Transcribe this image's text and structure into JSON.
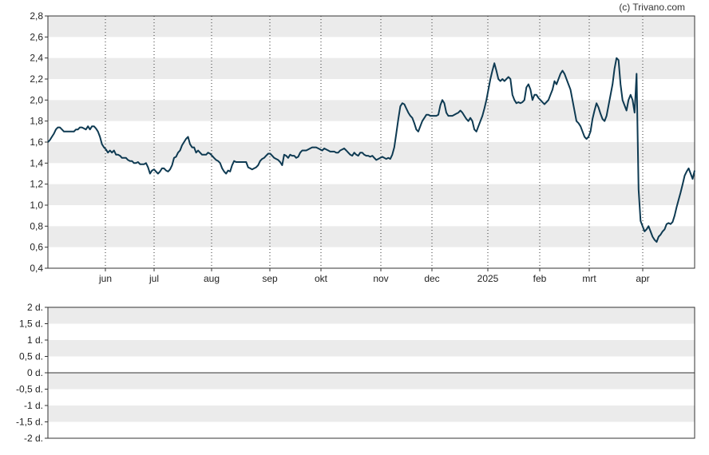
{
  "watermark": "(c) Trivano.com",
  "chart_data": [
    {
      "type": "line",
      "title": "",
      "xlabel": "",
      "ylabel": "",
      "ylim": [
        0.4,
        2.8
      ],
      "yticks": [
        "0,4",
        "0,6",
        "0,8",
        "1,0",
        "1,2",
        "1,4",
        "1,6",
        "1,8",
        "2,0",
        "2,2",
        "2,4",
        "2,6",
        "2,8"
      ],
      "xticks": [
        "jun",
        "jul",
        "aug",
        "sep",
        "okt",
        "nov",
        "dec",
        "2025",
        "feb",
        "mrt",
        "apr"
      ],
      "grid": "alternating horizontal bands, dotted vertical lines",
      "line_color": "#0e3a52",
      "series": [
        {
          "values": [
            1.6,
            1.62,
            1.65,
            1.68,
            1.72,
            1.74,
            1.74,
            1.72,
            1.7,
            1.7,
            1.7,
            1.7,
            1.7,
            1.7,
            1.72,
            1.72,
            1.74,
            1.74,
            1.73,
            1.72,
            1.75,
            1.72,
            1.75,
            1.75,
            1.73,
            1.7,
            1.65,
            1.58,
            1.55,
            1.53,
            1.5,
            1.52,
            1.5,
            1.52,
            1.48,
            1.48,
            1.47,
            1.45,
            1.45,
            1.45,
            1.43,
            1.42,
            1.42,
            1.4,
            1.4,
            1.41,
            1.39,
            1.39,
            1.39,
            1.4,
            1.36,
            1.3,
            1.33,
            1.34,
            1.32,
            1.3,
            1.32,
            1.35,
            1.35,
            1.33,
            1.32,
            1.34,
            1.38,
            1.45,
            1.46,
            1.5,
            1.52,
            1.57,
            1.6,
            1.63,
            1.65,
            1.58,
            1.55,
            1.55,
            1.5,
            1.52,
            1.5,
            1.48,
            1.48,
            1.48,
            1.5,
            1.49,
            1.47,
            1.45,
            1.43,
            1.42,
            1.4,
            1.35,
            1.32,
            1.3,
            1.33,
            1.32,
            1.38,
            1.42,
            1.41,
            1.41,
            1.41,
            1.41,
            1.41,
            1.41,
            1.36,
            1.35,
            1.34,
            1.35,
            1.36,
            1.38,
            1.42,
            1.44,
            1.45,
            1.47,
            1.49,
            1.49,
            1.47,
            1.45,
            1.44,
            1.43,
            1.41,
            1.38,
            1.48,
            1.47,
            1.45,
            1.48,
            1.47,
            1.47,
            1.45,
            1.46,
            1.5,
            1.52,
            1.52,
            1.52,
            1.53,
            1.54,
            1.55,
            1.55,
            1.55,
            1.54,
            1.53,
            1.52,
            1.54,
            1.53,
            1.52,
            1.51,
            1.51,
            1.51,
            1.5,
            1.5,
            1.52,
            1.53,
            1.54,
            1.52,
            1.5,
            1.48,
            1.47,
            1.5,
            1.48,
            1.47,
            1.5,
            1.5,
            1.48,
            1.47,
            1.47,
            1.46,
            1.47,
            1.45,
            1.43,
            1.44,
            1.45,
            1.46,
            1.45,
            1.44,
            1.45,
            1.44,
            1.48,
            1.55,
            1.68,
            1.82,
            1.94,
            1.97,
            1.96,
            1.92,
            1.88,
            1.85,
            1.83,
            1.78,
            1.72,
            1.7,
            1.75,
            1.8,
            1.83,
            1.86,
            1.86,
            1.85,
            1.85,
            1.85,
            1.85,
            1.86,
            1.95,
            2.0,
            1.97,
            1.88,
            1.85,
            1.85,
            1.85,
            1.86,
            1.87,
            1.88,
            1.9,
            1.88,
            1.85,
            1.82,
            1.8,
            1.83,
            1.8,
            1.72,
            1.7,
            1.75,
            1.8,
            1.85,
            1.92,
            2.0,
            2.1,
            2.2,
            2.28,
            2.35,
            2.28,
            2.2,
            2.18,
            2.2,
            2.18,
            2.2,
            2.22,
            2.2,
            2.05,
            2.0,
            1.97,
            1.98,
            1.97,
            1.98,
            2.0,
            2.12,
            2.15,
            2.1,
            2.0,
            2.05,
            2.05,
            2.02,
            2.0,
            1.98,
            1.96,
            1.98,
            2.0,
            2.05,
            2.1,
            2.18,
            2.15,
            2.2,
            2.25,
            2.28,
            2.25,
            2.2,
            2.15,
            2.1,
            2.0,
            1.9,
            1.8,
            1.78,
            1.75,
            1.7,
            1.65,
            1.63,
            1.65,
            1.7,
            1.82,
            1.9,
            1.97,
            1.93,
            1.87,
            1.82,
            1.8,
            1.85,
            1.95,
            2.05,
            2.15,
            2.3,
            2.4,
            2.38,
            2.15,
            2.0,
            1.95,
            1.9,
            2.0,
            2.05,
            2.0,
            1.88,
            2.25,
            1.15,
            0.85,
            0.8,
            0.75,
            0.77,
            0.8,
            0.75,
            0.7,
            0.67,
            0.65,
            0.7,
            0.72,
            0.75,
            0.77,
            0.82,
            0.83,
            0.82,
            0.84,
            0.9,
            0.98,
            1.05,
            1.12,
            1.2,
            1.28,
            1.32,
            1.35,
            1.3,
            1.25,
            1.33
          ]
        }
      ]
    },
    {
      "type": "line",
      "title": "",
      "ylim": [
        -2,
        2
      ],
      "yticks": [
        "2 d.",
        "1,5 d.",
        "1 d.",
        "0,5 d.",
        "0 d.",
        "-0,5 d.",
        "-1 d.",
        "-1,5 d.",
        "-2 d."
      ],
      "grid": "alternating horizontal bands",
      "reference_line": 0,
      "series": []
    }
  ]
}
